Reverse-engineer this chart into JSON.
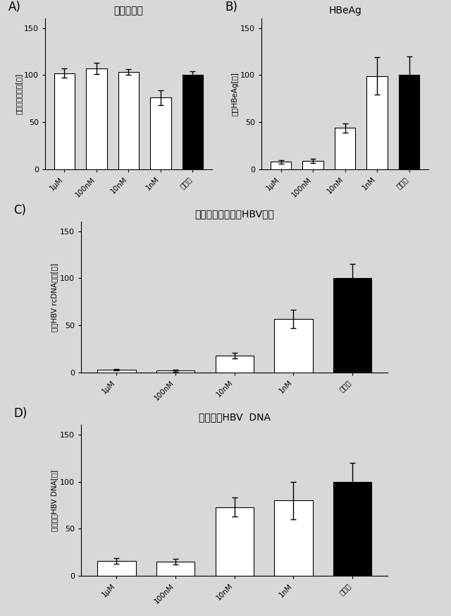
{
  "categories": [
    "1μM",
    "100nM",
    "10nM",
    "1nM",
    "未処理"
  ],
  "panel_A": {
    "title": "細胞生存率",
    "ylabel": "相対細胞生存率[％]",
    "values": [
      102,
      107,
      103,
      76,
      100
    ],
    "errors": [
      5,
      6,
      3,
      8,
      4
    ],
    "colors": [
      "white",
      "white",
      "white",
      "white",
      "black"
    ],
    "label": "A)"
  },
  "panel_B": {
    "title": "HBeAg",
    "ylabel": "相対HBeAg[％]",
    "values": [
      8,
      9,
      44,
      99,
      100
    ],
    "errors": [
      2,
      2,
      5,
      20,
      20
    ],
    "colors": [
      "white",
      "white",
      "white",
      "white",
      "black"
    ],
    "label": "B)"
  },
  "panel_C": {
    "title": "新たに放出されたHBV粒子",
    "ylabel": "相対HBV rcDNA分泌[％]",
    "values": [
      3,
      2,
      18,
      57,
      100
    ],
    "errors": [
      1,
      1,
      3,
      10,
      15
    ],
    "colors": [
      "white",
      "white",
      "white",
      "white",
      "black"
    ],
    "label": "C)"
  },
  "panel_D": {
    "title": "細胞内全HBV  DNA",
    "ylabel": "細胞内全HBV DNA[％]",
    "values": [
      16,
      15,
      73,
      80,
      100
    ],
    "errors": [
      3,
      3,
      10,
      20,
      20
    ],
    "colors": [
      "white",
      "white",
      "white",
      "white",
      "black"
    ],
    "label": "D)"
  },
  "ylim": [
    0,
    160
  ],
  "yticks": [
    0,
    50,
    100,
    150
  ],
  "background_color": "#d8d8d8",
  "bar_width": 0.65,
  "edgecolor": "black"
}
